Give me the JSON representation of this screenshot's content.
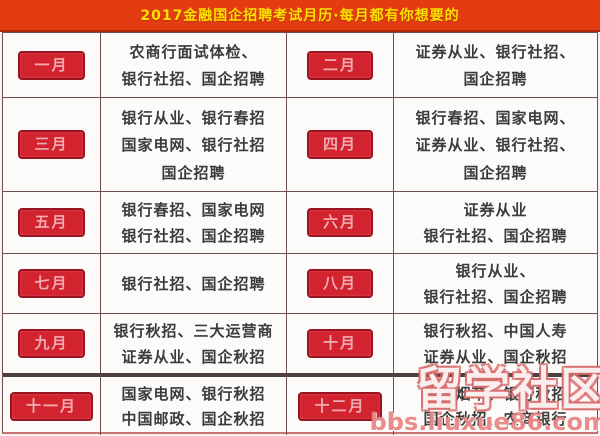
{
  "header": {
    "title": "2017金融国企招聘考试月历·每月都有你想要的"
  },
  "colors": {
    "banner_bg": "#e23c10",
    "banner_text": "#ffe100",
    "month_badge_bg": "#d2232e",
    "month_badge_border": "#991420",
    "month_badge_text": "#f0abb1",
    "grid_line": "#6e4f4f",
    "cell_text": "#3b3b3b"
  },
  "calendar": {
    "rows": [
      {
        "cells": [
          {
            "month": "一月",
            "lines": [
              "农商行面试体检、",
              "银行社招、国企招聘"
            ]
          },
          {
            "month": "二月",
            "lines": [
              "证券从业、银行社招、",
              "国企招聘"
            ]
          }
        ]
      },
      {
        "cells": [
          {
            "month": "三月",
            "lines": [
              "银行从业、银行春招",
              "国家电网、银行社招",
              "国企招聘"
            ]
          },
          {
            "month": "四月",
            "lines": [
              "银行春招、国家电网、",
              "证券从业、银行社招、",
              "国企招聘"
            ]
          }
        ]
      },
      {
        "cells": [
          {
            "month": "五月",
            "lines": [
              "银行春招、国家电网",
              "银行社招、国企招聘"
            ]
          },
          {
            "month": "六月",
            "lines": [
              "证券从业",
              "银行社招、国企招聘"
            ]
          }
        ]
      },
      {
        "cells": [
          {
            "month": "七月",
            "lines": [
              "银行社招、国企招聘"
            ]
          },
          {
            "month": "八月",
            "lines": [
              "银行从业、",
              "银行社招、国企招聘"
            ]
          }
        ]
      },
      {
        "cells": [
          {
            "month": "九月",
            "lines": [
              "银行秋招、三大运营商",
              "证券从业、国企秋招"
            ]
          },
          {
            "month": "十月",
            "lines": [
              "银行秋招、中国人寿",
              "证券从业、国企秋招"
            ]
          }
        ]
      },
      {
        "cells": [
          {
            "month": "十一月",
            "lines": [
              "国家电网、银行秋招",
              "中国邮政、国企秋招"
            ]
          },
          {
            "month": "十二月",
            "lines": [
              "中国烟草、银行秋招",
              "国企秋招、农商银行"
            ]
          }
        ]
      }
    ]
  },
  "watermark": {
    "title": "留学社区",
    "url": "bbs.liuxue86.com"
  }
}
